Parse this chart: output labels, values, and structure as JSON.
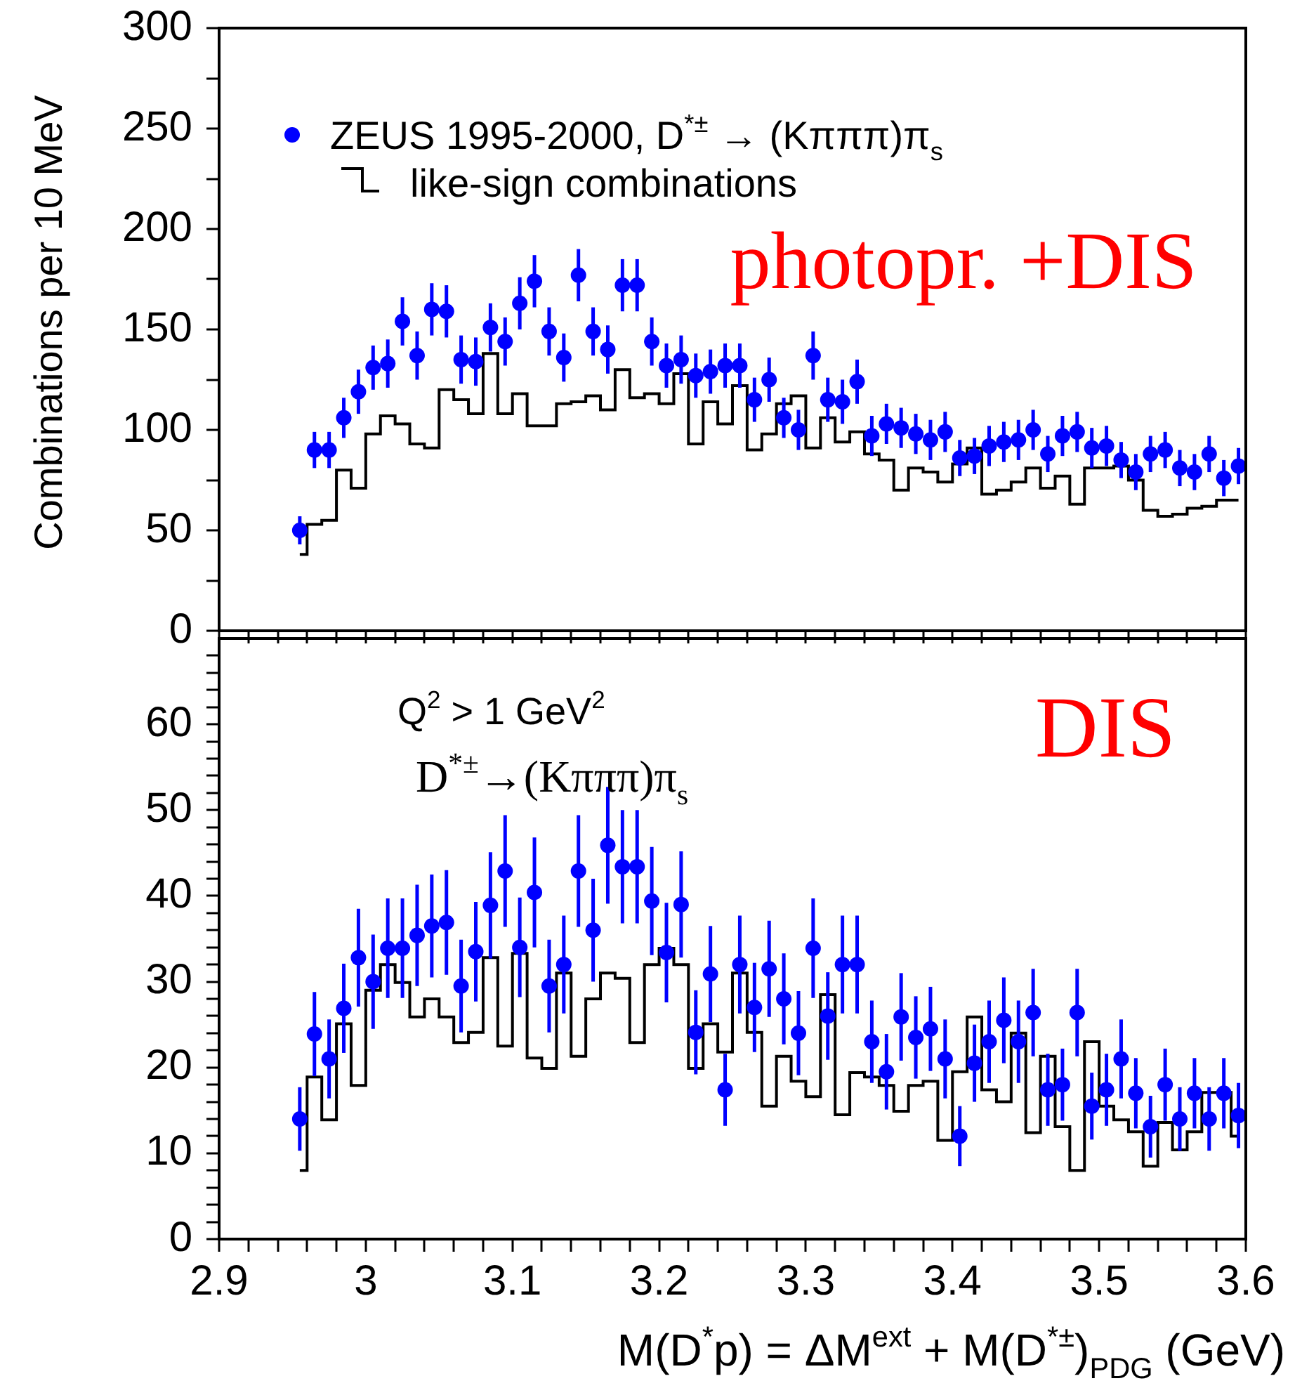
{
  "chart_data": [
    {
      "type": "scatter",
      "ylabel": "Combinations per 10 MeV",
      "legend": "top left",
      "marker": "circle",
      "tick_labels": "y",
      "annotations": [
        "photopr. +DIS"
      ],
      "x": [
        2.955,
        2.965,
        2.975,
        2.985,
        2.995,
        3.005,
        3.015,
        3.025,
        3.035,
        3.045,
        3.055,
        3.065,
        3.075,
        3.085,
        3.095,
        3.105,
        3.115,
        3.125,
        3.135,
        3.145,
        3.155,
        3.165,
        3.175,
        3.185,
        3.195,
        3.205,
        3.215,
        3.225,
        3.235,
        3.245,
        3.255,
        3.265,
        3.275,
        3.285,
        3.295,
        3.305,
        3.315,
        3.325,
        3.335,
        3.345,
        3.355,
        3.365,
        3.375,
        3.385,
        3.395,
        3.405,
        3.415,
        3.425,
        3.435,
        3.445,
        3.455,
        3.465,
        3.475,
        3.485,
        3.495,
        3.505,
        3.515,
        3.525,
        3.535,
        3.545,
        3.555,
        3.565,
        3.575,
        3.585,
        3.595
      ],
      "series": [
        {
          "name": "ZEUS 1995-2000, D$^{*±}$ → (Kπππ)π$_{s}$",
          "color": "#0000ff",
          "values": [
            50,
            90,
            90,
            106,
            119,
            131,
            133,
            154,
            137,
            160,
            159,
            135,
            134,
            151,
            144,
            163,
            174,
            149,
            136,
            177,
            149,
            140,
            172,
            172,
            144,
            132,
            135,
            127,
            129,
            132,
            132,
            115,
            125,
            106,
            100,
            137,
            115,
            114,
            124,
            97,
            103,
            101,
            98,
            95,
            99,
            86,
            87,
            92,
            94,
            95,
            100,
            88,
            97,
            99,
            91,
            92,
            85,
            79,
            88,
            90,
            81,
            79,
            88,
            76,
            82
          ],
          "errors": [
            7,
            9,
            9,
            10,
            11,
            11,
            12,
            12,
            12,
            13,
            13,
            12,
            12,
            12,
            12,
            13,
            13,
            12,
            12,
            13,
            12,
            12,
            13,
            13,
            12,
            11,
            12,
            11,
            11,
            11,
            11,
            11,
            11,
            10,
            10,
            12,
            11,
            11,
            11,
            10,
            10,
            10,
            10,
            10,
            10,
            9,
            9,
            10,
            10,
            10,
            10,
            9,
            10,
            10,
            10,
            10,
            9,
            9,
            9,
            9,
            9,
            9,
            9,
            9,
            9
          ]
        },
        {
          "name": "like-sign combinations",
          "type": "step",
          "marker": "none",
          "color": "#000000",
          "values": [
            38,
            53,
            55,
            80,
            71,
            98,
            107,
            103,
            93,
            91,
            120,
            115,
            108,
            138,
            108,
            118,
            102,
            102,
            113,
            114,
            117,
            110,
            130,
            116,
            118,
            113,
            128,
            93,
            114,
            103,
            122,
            90,
            98,
            113,
            117,
            91,
            106,
            94,
            99,
            88,
            85,
            70,
            81,
            79,
            74,
            83,
            91,
            68,
            70,
            74,
            81,
            71,
            77,
            63,
            81,
            81,
            82,
            75,
            60,
            57,
            58,
            61,
            62,
            65,
            65
          ]
        }
      ],
      "xlim": [
        2.9,
        3.6
      ],
      "xticks": [
        2.9,
        {
          "value": 2.92,
          "label": null
        },
        {
          "value": 2.94,
          "label": null
        },
        {
          "value": 2.96,
          "label": null
        },
        {
          "value": 2.98,
          "label": null
        },
        3,
        {
          "value": 3.02,
          "label": null
        },
        {
          "value": 3.04,
          "label": null
        },
        {
          "value": 3.06,
          "label": null
        },
        {
          "value": 3.08,
          "label": null
        },
        3.1,
        {
          "value": 3.12,
          "label": null
        },
        {
          "value": 3.14,
          "label": null
        },
        {
          "value": 3.16,
          "label": null
        },
        {
          "value": 3.18,
          "label": null
        },
        3.2,
        {
          "value": 3.22,
          "label": null
        },
        {
          "value": 3.24,
          "label": null
        },
        {
          "value": 3.26,
          "label": null
        },
        {
          "value": 3.28,
          "label": null
        },
        3.3,
        {
          "value": 3.32,
          "label": null
        },
        {
          "value": 3.34,
          "label": null
        },
        {
          "value": 3.36,
          "label": null
        },
        {
          "value": 3.38,
          "label": null
        },
        3.4,
        {
          "value": 3.42,
          "label": null
        },
        {
          "value": 3.44,
          "label": null
        },
        {
          "value": 3.46,
          "label": null
        },
        {
          "value": 3.48,
          "label": null
        },
        3.5,
        {
          "value": 3.52,
          "label": null
        },
        {
          "value": 3.54,
          "label": null
        },
        {
          "value": 3.56,
          "label": null
        },
        {
          "value": 3.58,
          "label": null
        },
        3.6
      ],
      "ylim": [
        0,
        300
      ],
      "yticks": [
        0,
        {
          "value": 25,
          "label": null
        },
        50,
        {
          "value": 75,
          "label": null
        },
        100,
        {
          "value": 125,
          "label": null
        },
        150,
        {
          "value": 175,
          "label": null
        },
        200,
        {
          "value": 225,
          "label": null
        },
        250,
        {
          "value": 275,
          "label": null
        },
        300
      ]
    },
    {
      "type": "scatter",
      "xlabel": "M(D$^{*}$p) = ΔM$^{ext}$ + M(D$^{*±}$)$_{PDG}$ (GeV)",
      "marker": "circle",
      "annotations": [
        "Q$^{2}$ > 1 GeV$^{2}$",
        "D$^{*±}$→(Kπππ)π$_{s}$",
        "DIS"
      ],
      "x": [
        2.955,
        2.965,
        2.975,
        2.985,
        2.995,
        3.005,
        3.015,
        3.025,
        3.035,
        3.045,
        3.055,
        3.065,
        3.075,
        3.085,
        3.095,
        3.105,
        3.115,
        3.125,
        3.135,
        3.145,
        3.155,
        3.165,
        3.175,
        3.185,
        3.195,
        3.205,
        3.215,
        3.225,
        3.235,
        3.245,
        3.255,
        3.265,
        3.275,
        3.285,
        3.295,
        3.305,
        3.315,
        3.325,
        3.335,
        3.345,
        3.355,
        3.365,
        3.375,
        3.385,
        3.395,
        3.405,
        3.415,
        3.425,
        3.435,
        3.445,
        3.455,
        3.465,
        3.475,
        3.485,
        3.495,
        3.505,
        3.515,
        3.525,
        3.535,
        3.545,
        3.555,
        3.565,
        3.575,
        3.585,
        3.595
      ],
      "series": [
        {
          "color": "#0000ff",
          "values": [
            14,
            23.9,
            21,
            26.9,
            32.8,
            30,
            33.9,
            33.9,
            35.4,
            36.5,
            36.9,
            29.5,
            33.5,
            38.9,
            42.9,
            34,
            40.4,
            29.5,
            32,
            42.9,
            36,
            45.9,
            43.4,
            43.4,
            39.4,
            33.4,
            39,
            24.1,
            30.9,
            17.4,
            32,
            27,
            31.5,
            28,
            24,
            33.9,
            26,
            32,
            32,
            23,
            19.5,
            25.9,
            23.5,
            24.5,
            21,
            12,
            20.5,
            23,
            25.5,
            23,
            26.4,
            17.4,
            18,
            26.4,
            15.5,
            17.4,
            21,
            17,
            13.1,
            18,
            14,
            17,
            14,
            17,
            14.4
          ],
          "errors": [
            3.7,
            4.9,
            4.6,
            5.2,
            5.7,
            5.5,
            5.8,
            5.8,
            5.9,
            6,
            6.1,
            5.4,
            5.8,
            6.2,
            6.5,
            5.8,
            6.4,
            5.4,
            5.7,
            6.5,
            6,
            6.8,
            6.6,
            6.6,
            6.3,
            5.8,
            6.2,
            4.9,
            5.6,
            4.2,
            5.7,
            5.2,
            5.6,
            5.3,
            4.9,
            5.8,
            5.1,
            5.7,
            5.7,
            4.8,
            4.4,
            5.1,
            4.8,
            4.9,
            4.6,
            3.5,
            4.5,
            4.8,
            5,
            4.8,
            5.1,
            4.2,
            4.2,
            5.1,
            3.9,
            4.2,
            4.6,
            4.1,
            3.6,
            4.2,
            3.7,
            4.1,
            3.7,
            4.1,
            3.8
          ]
        },
        {
          "type": "step",
          "marker": "none",
          "color": "#000000",
          "values": [
            8,
            18.9,
            13.9,
            25.1,
            17.9,
            29,
            32,
            29.9,
            25.9,
            28,
            25.9,
            22.9,
            24.1,
            32.8,
            22.5,
            33.3,
            21.1,
            19.9,
            31,
            21.3,
            28,
            31,
            30.4,
            22.9,
            32,
            33.9,
            32,
            19.9,
            25.1,
            21.8,
            31,
            24.1,
            15.5,
            21.3,
            18.4,
            16.6,
            28.5,
            14.5,
            19.4,
            18.9,
            17.9,
            14.9,
            17.9,
            18.4,
            11.5,
            19.5,
            25.9,
            17.4,
            16,
            24,
            12.4,
            21.3,
            13.1,
            8,
            23,
            15.5,
            13.9,
            12.5,
            8.5,
            13.6,
            10.4,
            12.5,
            17.1,
            17.1,
            12
          ]
        }
      ],
      "xlim": [
        2.9,
        3.6
      ],
      "xticks": [
        2.9,
        {
          "value": 2.92,
          "label": null
        },
        {
          "value": 2.94,
          "label": null
        },
        {
          "value": 2.96,
          "label": null
        },
        {
          "value": 2.98,
          "label": null
        },
        3,
        {
          "value": 3.02,
          "label": null
        },
        {
          "value": 3.04,
          "label": null
        },
        {
          "value": 3.06,
          "label": null
        },
        {
          "value": 3.08,
          "label": null
        },
        3.1,
        {
          "value": 3.12,
          "label": null
        },
        {
          "value": 3.14,
          "label": null
        },
        {
          "value": 3.16,
          "label": null
        },
        {
          "value": 3.18,
          "label": null
        },
        3.2,
        {
          "value": 3.22,
          "label": null
        },
        {
          "value": 3.24,
          "label": null
        },
        {
          "value": 3.26,
          "label": null
        },
        {
          "value": 3.28,
          "label": null
        },
        3.3,
        {
          "value": 3.32,
          "label": null
        },
        {
          "value": 3.34,
          "label": null
        },
        {
          "value": 3.36,
          "label": null
        },
        {
          "value": 3.38,
          "label": null
        },
        3.4,
        {
          "value": 3.42,
          "label": null
        },
        {
          "value": 3.44,
          "label": null
        },
        {
          "value": 3.46,
          "label": null
        },
        {
          "value": 3.48,
          "label": null
        },
        3.5,
        {
          "value": 3.52,
          "label": null
        },
        {
          "value": 3.54,
          "label": null
        },
        {
          "value": 3.56,
          "label": null
        },
        {
          "value": 3.58,
          "label": null
        },
        3.6
      ],
      "ylim": [
        0,
        70
      ],
      "yticks": [
        0,
        {
          "value": 2,
          "label": null
        },
        {
          "value": 4,
          "label": null
        },
        {
          "value": 6,
          "label": null
        },
        {
          "value": 8,
          "label": null
        },
        10,
        {
          "value": 12,
          "label": null
        },
        {
          "value": 14,
          "label": null
        },
        {
          "value": 16,
          "label": null
        },
        {
          "value": 18,
          "label": null
        },
        20,
        {
          "value": 22,
          "label": null
        },
        {
          "value": 24,
          "label": null
        },
        {
          "value": 26,
          "label": null
        },
        {
          "value": 28,
          "label": null
        },
        30,
        {
          "value": 32,
          "label": null
        },
        {
          "value": 34,
          "label": null
        },
        {
          "value": 36,
          "label": null
        },
        {
          "value": 38,
          "label": null
        },
        40,
        {
          "value": 42,
          "label": null
        },
        {
          "value": 44,
          "label": null
        },
        {
          "value": 46,
          "label": null
        },
        {
          "value": 48,
          "label": null
        },
        50,
        {
          "value": 52,
          "label": null
        },
        {
          "value": 54,
          "label": null
        },
        {
          "value": 56,
          "label": null
        },
        {
          "value": 58,
          "label": null
        },
        60,
        {
          "value": 62,
          "label": null
        },
        {
          "value": 64,
          "label": null
        },
        {
          "value": 66,
          "label": null
        },
        {
          "value": 68,
          "label": null
        }
      ]
    }
  ]
}
